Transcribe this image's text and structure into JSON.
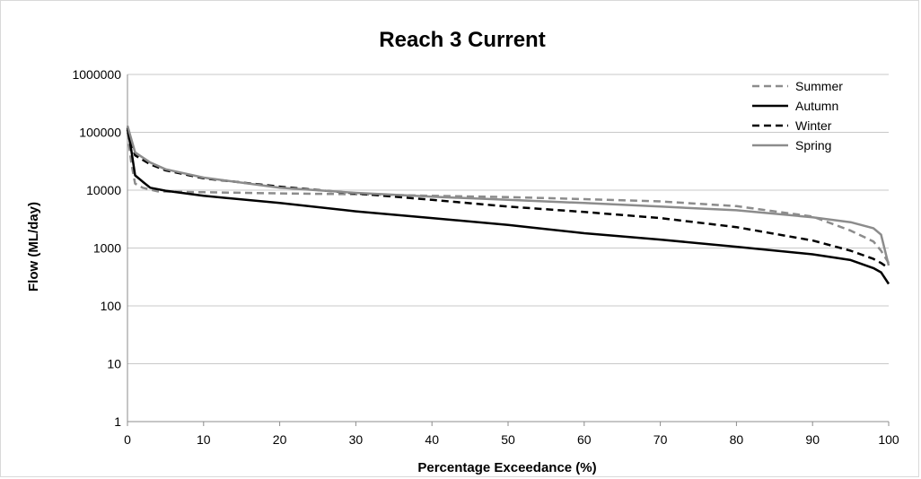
{
  "chart_data": {
    "type": "line",
    "title": "Reach 3 Current",
    "xlabel": "Percentage Exceedance (%)",
    "ylabel": "Flow (ML/day)",
    "xlim": [
      0,
      100
    ],
    "ylim": [
      1,
      1000000
    ],
    "y_scale": "log",
    "x_ticks": [
      0,
      10,
      20,
      30,
      40,
      50,
      60,
      70,
      80,
      90,
      100
    ],
    "y_ticks": [
      1,
      10,
      100,
      1000,
      10000,
      100000,
      1000000
    ],
    "y_tick_labels": [
      "1",
      "10",
      "100",
      "1000",
      "10000",
      "100000",
      "1000000"
    ],
    "grid": true,
    "legend_position": "top-right",
    "series": [
      {
        "name": "Summer",
        "color": "#8c8c8c",
        "dash": "dashed",
        "x": [
          0,
          0.5,
          1,
          2,
          4,
          10,
          20,
          30,
          40,
          50,
          60,
          70,
          80,
          90,
          95,
          98,
          99,
          100
        ],
        "y": [
          100000,
          30000,
          13000,
          11000,
          9500,
          9200,
          8800,
          8500,
          8000,
          7600,
          7000,
          6400,
          5300,
          3500,
          2000,
          1300,
          900,
          550
        ]
      },
      {
        "name": "Autumn",
        "color": "#000000",
        "dash": "solid",
        "x": [
          0,
          0.5,
          1,
          2,
          3,
          5,
          10,
          20,
          30,
          40,
          50,
          60,
          70,
          80,
          90,
          95,
          98,
          99,
          100
        ],
        "y": [
          120000,
          50000,
          18000,
          14000,
          11000,
          9800,
          8000,
          6000,
          4300,
          3300,
          2500,
          1800,
          1400,
          1050,
          780,
          620,
          450,
          380,
          240
        ]
      },
      {
        "name": "Winter",
        "color": "#000000",
        "dash": "dashed",
        "x": [
          0,
          1,
          3,
          5,
          10,
          20,
          30,
          40,
          50,
          60,
          70,
          80,
          90,
          95,
          98,
          99,
          100
        ],
        "y": [
          110000,
          40000,
          28000,
          22000,
          16000,
          11500,
          8800,
          6800,
          5200,
          4200,
          3300,
          2300,
          1350,
          900,
          650,
          550,
          450
        ]
      },
      {
        "name": "Spring",
        "color": "#8c8c8c",
        "dash": "solid",
        "x": [
          0,
          1,
          3,
          5,
          10,
          20,
          30,
          40,
          50,
          60,
          70,
          80,
          90,
          95,
          98,
          99,
          100
        ],
        "y": [
          130000,
          45000,
          30000,
          23000,
          16500,
          11000,
          9000,
          7700,
          6800,
          6000,
          5200,
          4500,
          3400,
          2800,
          2200,
          1700,
          500
        ]
      }
    ]
  }
}
